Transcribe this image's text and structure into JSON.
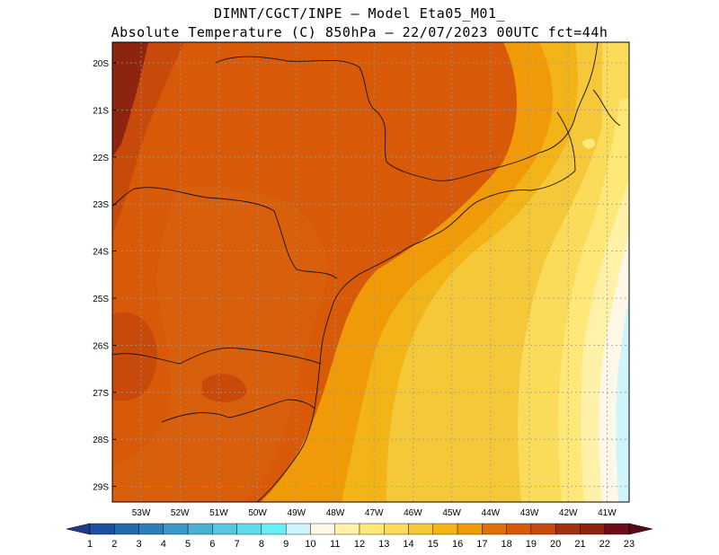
{
  "header": {
    "line1": "DIMNT/CGCT/INPE –  Model Eta05_M01_",
    "line2": "Absolute Temperature (C) 850hPa –  22/07/2023 00UTC fct=44h"
  },
  "map": {
    "lat_labels": [
      "20S",
      "21S",
      "22S",
      "23S",
      "24S",
      "25S",
      "26S",
      "27S",
      "28S",
      "29S"
    ],
    "lon_labels": [
      "53W",
      "52W",
      "51W",
      "50W",
      "49W",
      "48W",
      "47W",
      "46W",
      "45W",
      "44W",
      "43W",
      "42W",
      "41W"
    ]
  },
  "colorbar": {
    "labels": [
      "1",
      "2",
      "3",
      "4",
      "5",
      "6",
      "7",
      "8",
      "9",
      "10",
      "11",
      "12",
      "13",
      "14",
      "15",
      "16",
      "17",
      "18",
      "19",
      "20",
      "21",
      "22",
      "23"
    ],
    "colors": [
      "#1d3a8c",
      "#1f4fa0",
      "#2468ad",
      "#2c7fb8",
      "#3c98c6",
      "#4bb1d3",
      "#58c8e0",
      "#5ddbe8",
      "#66f0f5",
      "#d0f4fb",
      "#fff8e8",
      "#fff2a8",
      "#ffe878",
      "#fbdc5a",
      "#f5c83a",
      "#f2b417",
      "#f09a08",
      "#e07008",
      "#d85a08",
      "#c84a0a",
      "#a3310f",
      "#8c2410",
      "#6e0c19",
      "#5a0a12"
    ]
  }
}
